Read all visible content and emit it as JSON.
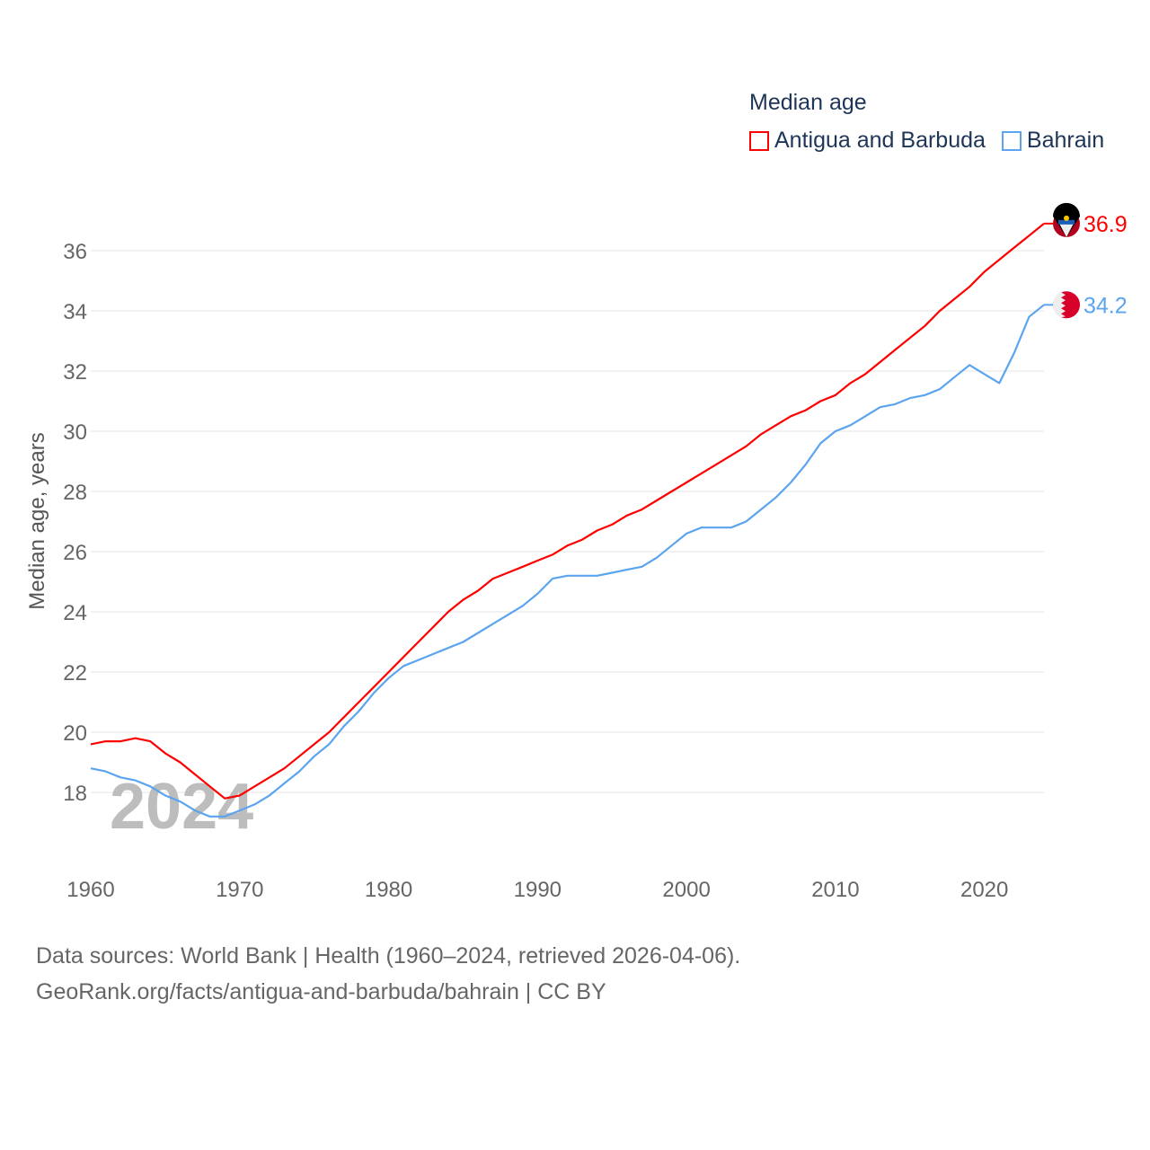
{
  "chart_data": {
    "type": "line",
    "title": "Median age",
    "xlabel": "",
    "ylabel": "Median age, years",
    "xlim": [
      1960,
      2024
    ],
    "ylim": [
      16.2,
      38
    ],
    "yticks": [
      18,
      20,
      22,
      24,
      26,
      28,
      30,
      32,
      34,
      36
    ],
    "xticks": [
      1960,
      1970,
      1980,
      1990,
      2000,
      2010,
      2020
    ],
    "grid": true,
    "legend_position": "top-right",
    "year_watermark": "2024",
    "x": [
      1960,
      1961,
      1962,
      1963,
      1964,
      1965,
      1966,
      1967,
      1968,
      1969,
      1970,
      1971,
      1972,
      1973,
      1974,
      1975,
      1976,
      1977,
      1978,
      1979,
      1980,
      1981,
      1982,
      1983,
      1984,
      1985,
      1986,
      1987,
      1988,
      1989,
      1990,
      1991,
      1992,
      1993,
      1994,
      1995,
      1996,
      1997,
      1998,
      1999,
      2000,
      2001,
      2002,
      2003,
      2004,
      2005,
      2006,
      2007,
      2008,
      2009,
      2010,
      2011,
      2012,
      2013,
      2014,
      2015,
      2016,
      2017,
      2018,
      2019,
      2020,
      2021,
      2022,
      2023,
      2024
    ],
    "series": [
      {
        "name": "Antigua and Barbuda",
        "color": "#ff0000",
        "end_label": "36.9",
        "values": [
          19.6,
          19.7,
          19.7,
          19.8,
          19.7,
          19.3,
          19.0,
          18.6,
          18.2,
          17.8,
          17.9,
          18.2,
          18.5,
          18.8,
          19.2,
          19.6,
          20.0,
          20.5,
          21.0,
          21.5,
          22.0,
          22.5,
          23.0,
          23.5,
          24.0,
          24.4,
          24.7,
          25.1,
          25.3,
          25.5,
          25.7,
          25.9,
          26.2,
          26.4,
          26.7,
          26.9,
          27.2,
          27.4,
          27.7,
          28.0,
          28.3,
          28.6,
          28.9,
          29.2,
          29.5,
          29.9,
          30.2,
          30.5,
          30.7,
          31.0,
          31.2,
          31.6,
          31.9,
          32.3,
          32.7,
          33.1,
          33.5,
          34.0,
          34.4,
          34.8,
          35.3,
          35.7,
          36.1,
          36.5,
          36.9
        ]
      },
      {
        "name": "Bahrain",
        "color": "#5ba4ef",
        "end_label": "34.2",
        "values": [
          18.8,
          18.7,
          18.5,
          18.4,
          18.2,
          17.9,
          17.7,
          17.4,
          17.2,
          17.2,
          17.4,
          17.6,
          17.9,
          18.3,
          18.7,
          19.2,
          19.6,
          20.2,
          20.7,
          21.3,
          21.8,
          22.2,
          22.4,
          22.6,
          22.8,
          23.0,
          23.3,
          23.6,
          23.9,
          24.2,
          24.6,
          25.1,
          25.2,
          25.2,
          25.2,
          25.3,
          25.4,
          25.5,
          25.8,
          26.2,
          26.6,
          26.8,
          26.8,
          26.8,
          27.0,
          27.4,
          27.8,
          28.3,
          28.9,
          29.6,
          30.0,
          30.2,
          30.5,
          30.8,
          30.9,
          31.1,
          31.2,
          31.4,
          31.8,
          32.2,
          31.9,
          31.6,
          32.6,
          33.8,
          34.2
        ]
      }
    ]
  },
  "source": {
    "line1": "Data sources: World Bank | Health (1960–2024, retrieved 2026-04-06).",
    "line2": "GeoRank.org/facts/antigua-and-barbuda/bahrain | CC BY"
  }
}
